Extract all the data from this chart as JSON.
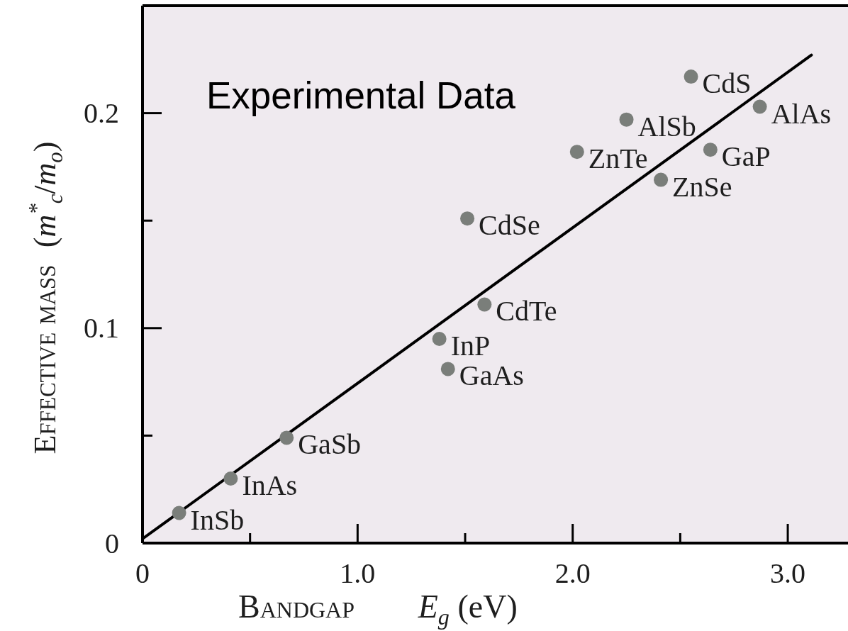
{
  "chart_data": {
    "type": "scatter",
    "title": "Experimental Data",
    "xlabel": "Bandgap E$_{g}$ (eV)",
    "ylabel": "Effective mass (m$^{*}$$_{c}$/m$_{o}$)",
    "xlim": [
      0,
      3.28
    ],
    "xticks": [
      0,
      {
        "value": 0.5,
        "label": null
      },
      {
        "value": 1,
        "label": "1.0"
      },
      {
        "value": 1.5,
        "label": null
      },
      {
        "value": 2,
        "label": "2.0"
      },
      {
        "value": 2.5,
        "label": null
      },
      {
        "value": 3,
        "label": "3.0"
      }
    ],
    "ylim": [
      0,
      0.25
    ],
    "yticks": [
      0,
      {
        "value": 0.05,
        "label": null
      },
      0.1,
      {
        "value": 0.15,
        "label": null
      },
      0.2
    ],
    "series": [
      {
        "color": "#7a7e7a",
        "marker": "circle",
        "x": [
          0.17,
          0.41,
          0.67,
          1.38,
          1.42,
          1.59,
          1.51,
          2.02,
          2.25,
          2.41,
          2.55,
          2.64,
          2.87
        ],
        "values": [
          0.014,
          0.03,
          0.049,
          0.095,
          0.081,
          0.111,
          0.151,
          0.182,
          0.197,
          0.169,
          0.217,
          0.183,
          0.203
        ]
      },
      {
        "type": "line",
        "color": "#000000",
        "marker": "none",
        "line_style": "solid",
        "x": [
          0,
          3.11
        ],
        "values": [
          0.002,
          0.227
        ]
      }
    ],
    "annotations": [
      {
        "text": "InSb",
        "x": 0.17,
        "y": 0.014
      },
      {
        "text": "InAs",
        "x": 0.41,
        "y": 0.03
      },
      {
        "text": "GaSb",
        "x": 0.67,
        "y": 0.049
      },
      {
        "text": "InP",
        "x": 1.38,
        "y": 0.095
      },
      {
        "text": "GaAs",
        "x": 1.42,
        "y": 0.081
      },
      {
        "text": "CdTe",
        "x": 1.59,
        "y": 0.111
      },
      {
        "text": "CdSe",
        "x": 1.51,
        "y": 0.151
      },
      {
        "text": "ZnTe",
        "x": 2.02,
        "y": 0.182
      },
      {
        "text": "AlSb",
        "x": 2.25,
        "y": 0.197
      },
      {
        "text": "ZnSe",
        "x": 2.41,
        "y": 0.169
      },
      {
        "text": "CdS",
        "x": 2.55,
        "y": 0.217
      },
      {
        "text": "GaP",
        "x": 2.64,
        "y": 0.183
      },
      {
        "text": "AlAs",
        "x": 2.87,
        "y": 0.203
      }
    ]
  }
}
